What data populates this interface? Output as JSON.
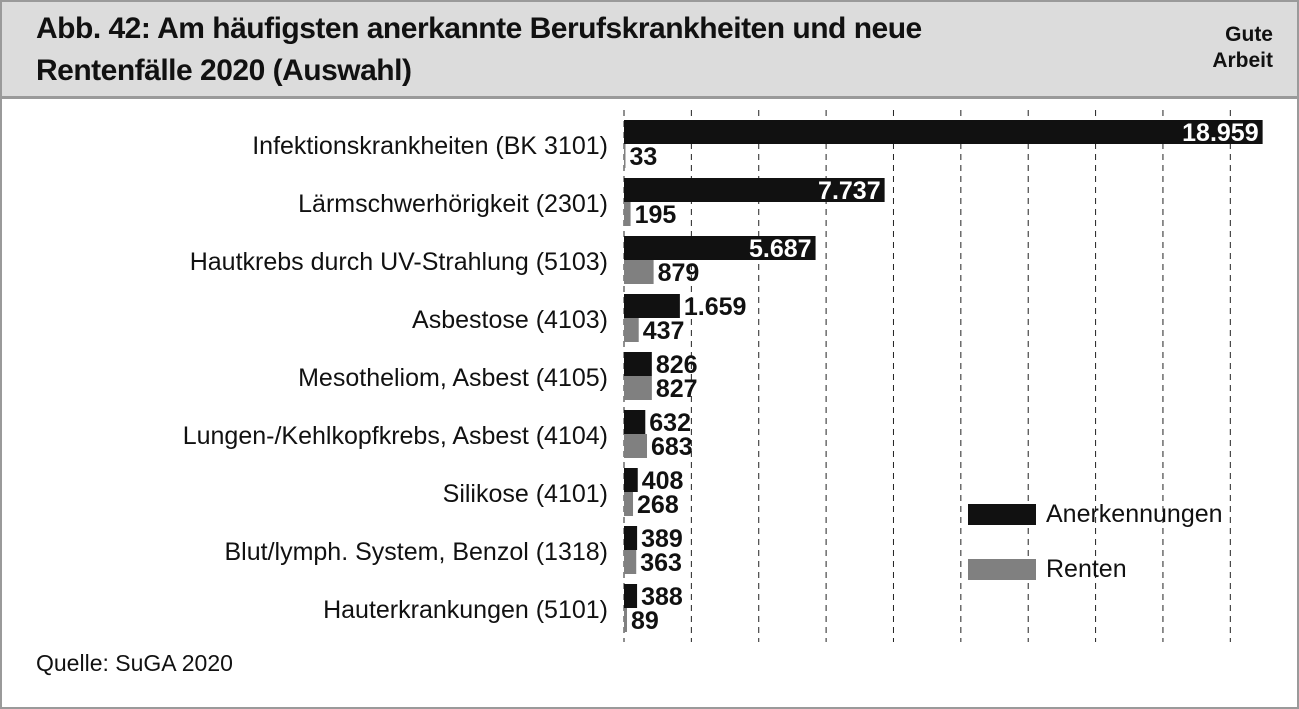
{
  "header": {
    "title": "Abb. 42: Am häufigsten anerkannte Berufskrankheiten und neue Rentenfälle 2020 (Auswahl)",
    "brand_line1": "Gute",
    "brand_line2": "Arbeit"
  },
  "source": "Quelle: SuGA 2020",
  "colors": {
    "anerkennungen": "#111111",
    "renten": "#808080",
    "grid": "#222222"
  },
  "legend": [
    {
      "label": "Anerkennungen",
      "color": "#111111"
    },
    {
      "label": "Renten",
      "color": "#808080"
    }
  ],
  "chart_data": {
    "type": "bar",
    "orientation": "horizontal",
    "title": "",
    "xlabel": "",
    "ylabel": "",
    "xlim": [
      0,
      20000
    ],
    "grid": true,
    "legend_position": "bottom-right",
    "categories": [
      "Infektionskrankheiten (BK 3101)",
      "Lärmschwerhörigkeit (2301)",
      "Hautkrebs durch UV-Strahlung (5103)",
      "Asbestose (4103)",
      "Mesotheliom, Asbest (4105)",
      "Lungen-/Kehlkopfkrebs, Asbest (4104)",
      "Silikose (4101)",
      "Blut/lymph. System, Benzol (1318)",
      "Hauterkrankungen (5101)"
    ],
    "series": [
      {
        "name": "Anerkennungen",
        "values": [
          18959,
          7737,
          5687,
          1659,
          826,
          632,
          408,
          389,
          388
        ],
        "labels": [
          "18.959",
          "7.737",
          "5.687",
          "1.659",
          "826",
          "632",
          "408",
          "389",
          "388"
        ]
      },
      {
        "name": "Renten",
        "values": [
          33,
          195,
          879,
          437,
          827,
          683,
          268,
          363,
          89
        ],
        "labels": [
          "33",
          "195",
          "879",
          "437",
          "827",
          "683",
          "268",
          "363",
          "89"
        ]
      }
    ]
  }
}
